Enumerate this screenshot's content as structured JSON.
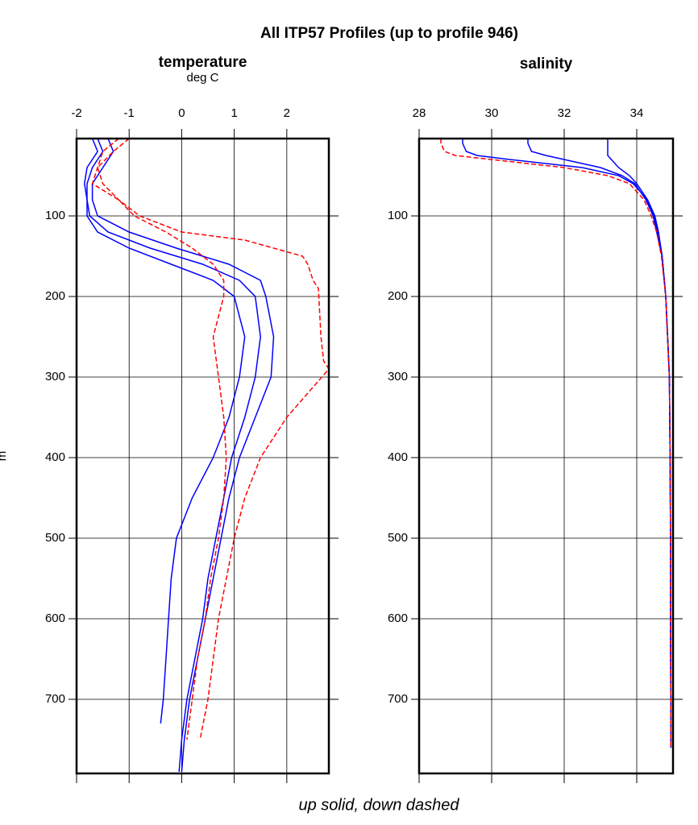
{
  "title": "All ITP57 Profiles (up to profile 946)",
  "footer": "up solid, down dashed",
  "chart_data": [
    {
      "type": "line",
      "title": "temperature",
      "subtitle": "deg C",
      "ylabel": "m",
      "xlim": [
        -2,
        2.8
      ],
      "xticks": [
        -2,
        -1,
        0,
        1,
        2
      ],
      "ylim": [
        4,
        792
      ],
      "yticks": [
        100,
        200,
        300,
        400,
        500,
        600,
        700
      ],
      "y_reversed": true,
      "grid": true,
      "series": [
        {
          "color": "#0000ff",
          "style": "solid",
          "x": [
            -1.6,
            -1.5,
            -1.7,
            -1.8,
            -1.8,
            -1.75,
            -1.4,
            -0.6,
            0.4,
            1.1,
            1.4,
            1.5,
            1.4,
            1.2,
            0.95,
            0.8,
            0.65,
            0.5,
            0.4,
            0.25,
            0.1,
            0,
            -0.05
          ],
          "values": [
            4,
            20,
            40,
            60,
            80,
            100,
            120,
            140,
            160,
            180,
            200,
            250,
            300,
            350,
            400,
            450,
            500,
            550,
            600,
            650,
            700,
            750,
            790
          ]
        },
        {
          "color": "#0000ff",
          "style": "solid",
          "x": [
            -1.4,
            -1.3,
            -1.5,
            -1.7,
            -1.7,
            -1.6,
            -1.0,
            -0.1,
            0.9,
            1.5,
            1.6,
            1.75,
            1.7,
            1.4,
            1.1,
            0.9,
            0.75,
            0.6,
            0.45,
            0.3,
            0.15,
            0.05,
            0
          ],
          "values": [
            4,
            20,
            40,
            60,
            80,
            100,
            120,
            140,
            160,
            180,
            200,
            250,
            300,
            350,
            400,
            450,
            500,
            550,
            600,
            650,
            700,
            750,
            790
          ]
        },
        {
          "color": "#0000ff",
          "style": "solid",
          "x": [
            -1.7,
            -1.6,
            -1.8,
            -1.85,
            -1.8,
            -1.8,
            -1.6,
            -1.0,
            -0.2,
            0.6,
            1.0,
            1.2,
            1.1,
            0.9,
            0.6,
            0.2,
            -0.1,
            -0.2,
            -0.25,
            -0.3,
            -0.35,
            -0.4
          ],
          "values": [
            4,
            20,
            40,
            60,
            80,
            100,
            120,
            140,
            160,
            180,
            200,
            250,
            300,
            350,
            400,
            450,
            500,
            550,
            600,
            650,
            700,
            730
          ]
        },
        {
          "color": "#ff0000",
          "style": "dashed",
          "x": [
            -1.0,
            -1.3,
            -1.6,
            -1.5,
            -1.2,
            -0.8,
            0,
            1.2,
            2.3,
            2.4,
            2.5,
            2.6,
            2.65,
            2.7,
            2.8,
            2.0,
            1.5,
            1.2,
            1.0,
            0.7,
            0.5,
            0.35
          ],
          "values": [
            4,
            20,
            40,
            60,
            80,
            100,
            120,
            130,
            150,
            160,
            180,
            190,
            250,
            280,
            290,
            350,
            400,
            450,
            500,
            600,
            700,
            750
          ]
        },
        {
          "color": "#ff0000",
          "style": "dashed",
          "x": [
            -1.2,
            -1.5,
            -1.6,
            -1.7,
            -1.2,
            -0.9,
            -0.3,
            0.2,
            0.6,
            0.8,
            0.8,
            0.6,
            0.7,
            0.8,
            0.85,
            0.8,
            0.7,
            0.55,
            0.45,
            0.3,
            0.2,
            0.1
          ],
          "values": [
            4,
            20,
            40,
            60,
            80,
            100,
            120,
            140,
            160,
            180,
            200,
            250,
            300,
            350,
            400,
            450,
            500,
            550,
            600,
            650,
            700,
            750
          ]
        }
      ]
    },
    {
      "type": "line",
      "title": "salinity",
      "xlim": [
        28,
        35
      ],
      "xticks": [
        28,
        30,
        32,
        34
      ],
      "ylim": [
        4,
        792
      ],
      "yticks": [
        100,
        200,
        300,
        400,
        500,
        600,
        700
      ],
      "y_reversed": true,
      "grid": true,
      "series": [
        {
          "color": "#0000ff",
          "style": "solid",
          "x": [
            33.2,
            33.2,
            33.2,
            33.2,
            33.3,
            33.5,
            33.8,
            34.0,
            34.15,
            34.3,
            34.4,
            34.5,
            34.6,
            34.7,
            34.8,
            34.85,
            34.9,
            34.92,
            34.93,
            34.93,
            34.94,
            34.94
          ],
          "values": [
            4,
            10,
            20,
            25,
            30,
            40,
            50,
            60,
            70,
            80,
            90,
            100,
            120,
            150,
            200,
            250,
            300,
            400,
            500,
            600,
            700,
            760
          ]
        },
        {
          "color": "#0000ff",
          "style": "solid",
          "x": [
            31.0,
            31.0,
            31.1,
            31.5,
            32.0,
            33.0,
            33.6,
            33.95,
            34.1,
            34.28,
            34.38,
            34.48,
            34.58,
            34.7,
            34.8,
            34.85,
            34.9,
            34.92,
            34.93,
            34.93,
            34.94,
            34.94
          ],
          "values": [
            4,
            10,
            20,
            25,
            30,
            40,
            50,
            60,
            70,
            80,
            90,
            100,
            120,
            150,
            200,
            250,
            300,
            400,
            500,
            600,
            700,
            760
          ]
        },
        {
          "color": "#0000ff",
          "style": "solid",
          "x": [
            29.2,
            29.2,
            29.3,
            29.6,
            30.5,
            32.5,
            33.5,
            33.9,
            34.1,
            34.25,
            34.35,
            34.45,
            34.55,
            34.7,
            34.8,
            34.85,
            34.9,
            34.92,
            34.93,
            34.93,
            34.94,
            34.94
          ],
          "values": [
            4,
            10,
            20,
            25,
            30,
            40,
            50,
            60,
            70,
            80,
            90,
            100,
            120,
            150,
            200,
            250,
            300,
            400,
            500,
            600,
            700,
            760
          ]
        },
        {
          "color": "#ff0000",
          "style": "dashed",
          "x": [
            28.6,
            28.6,
            28.7,
            29.0,
            30.0,
            32.0,
            33.2,
            33.8,
            34.0,
            34.2,
            34.3,
            34.4,
            34.55,
            34.68,
            34.8,
            34.85,
            34.9,
            34.92,
            34.93,
            34.93,
            34.94,
            34.94
          ],
          "values": [
            4,
            10,
            20,
            25,
            30,
            40,
            50,
            60,
            70,
            80,
            90,
            100,
            120,
            150,
            200,
            250,
            300,
            400,
            500,
            600,
            700,
            760
          ]
        }
      ]
    }
  ]
}
